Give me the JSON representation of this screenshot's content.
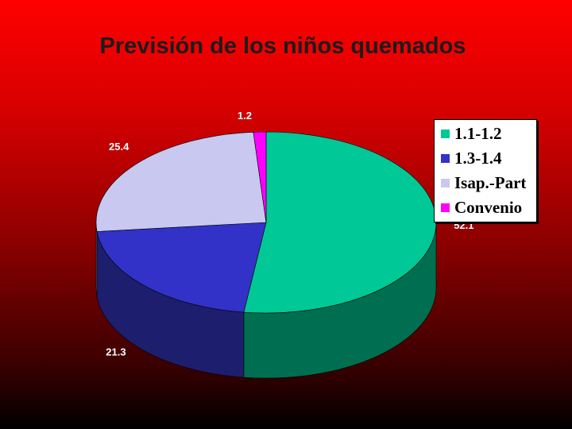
{
  "chart_data": {
    "type": "pie",
    "title": "Previsión de los niños quemados",
    "categories": [
      "1.1-1.2",
      "1.3-1.4",
      "Isap.-Part",
      "Convenio"
    ],
    "values": [
      52.1,
      21.3,
      25.4,
      1.2
    ],
    "data_labels": [
      "52.1",
      "21.3",
      "25.4",
      "1.2"
    ],
    "colors": [
      "#00c896",
      "#3232c8",
      "#c8c8f0",
      "#ff00ff"
    ],
    "side_colors": [
      "#006e50",
      "#1e1e6e",
      "#6e6e8c",
      "#8c008c"
    ],
    "legend": {
      "position": "right",
      "entries": [
        "1.1-1.2",
        "1.3-1.4",
        "Isap.-Part",
        "Convenio"
      ]
    },
    "style": "3d"
  }
}
